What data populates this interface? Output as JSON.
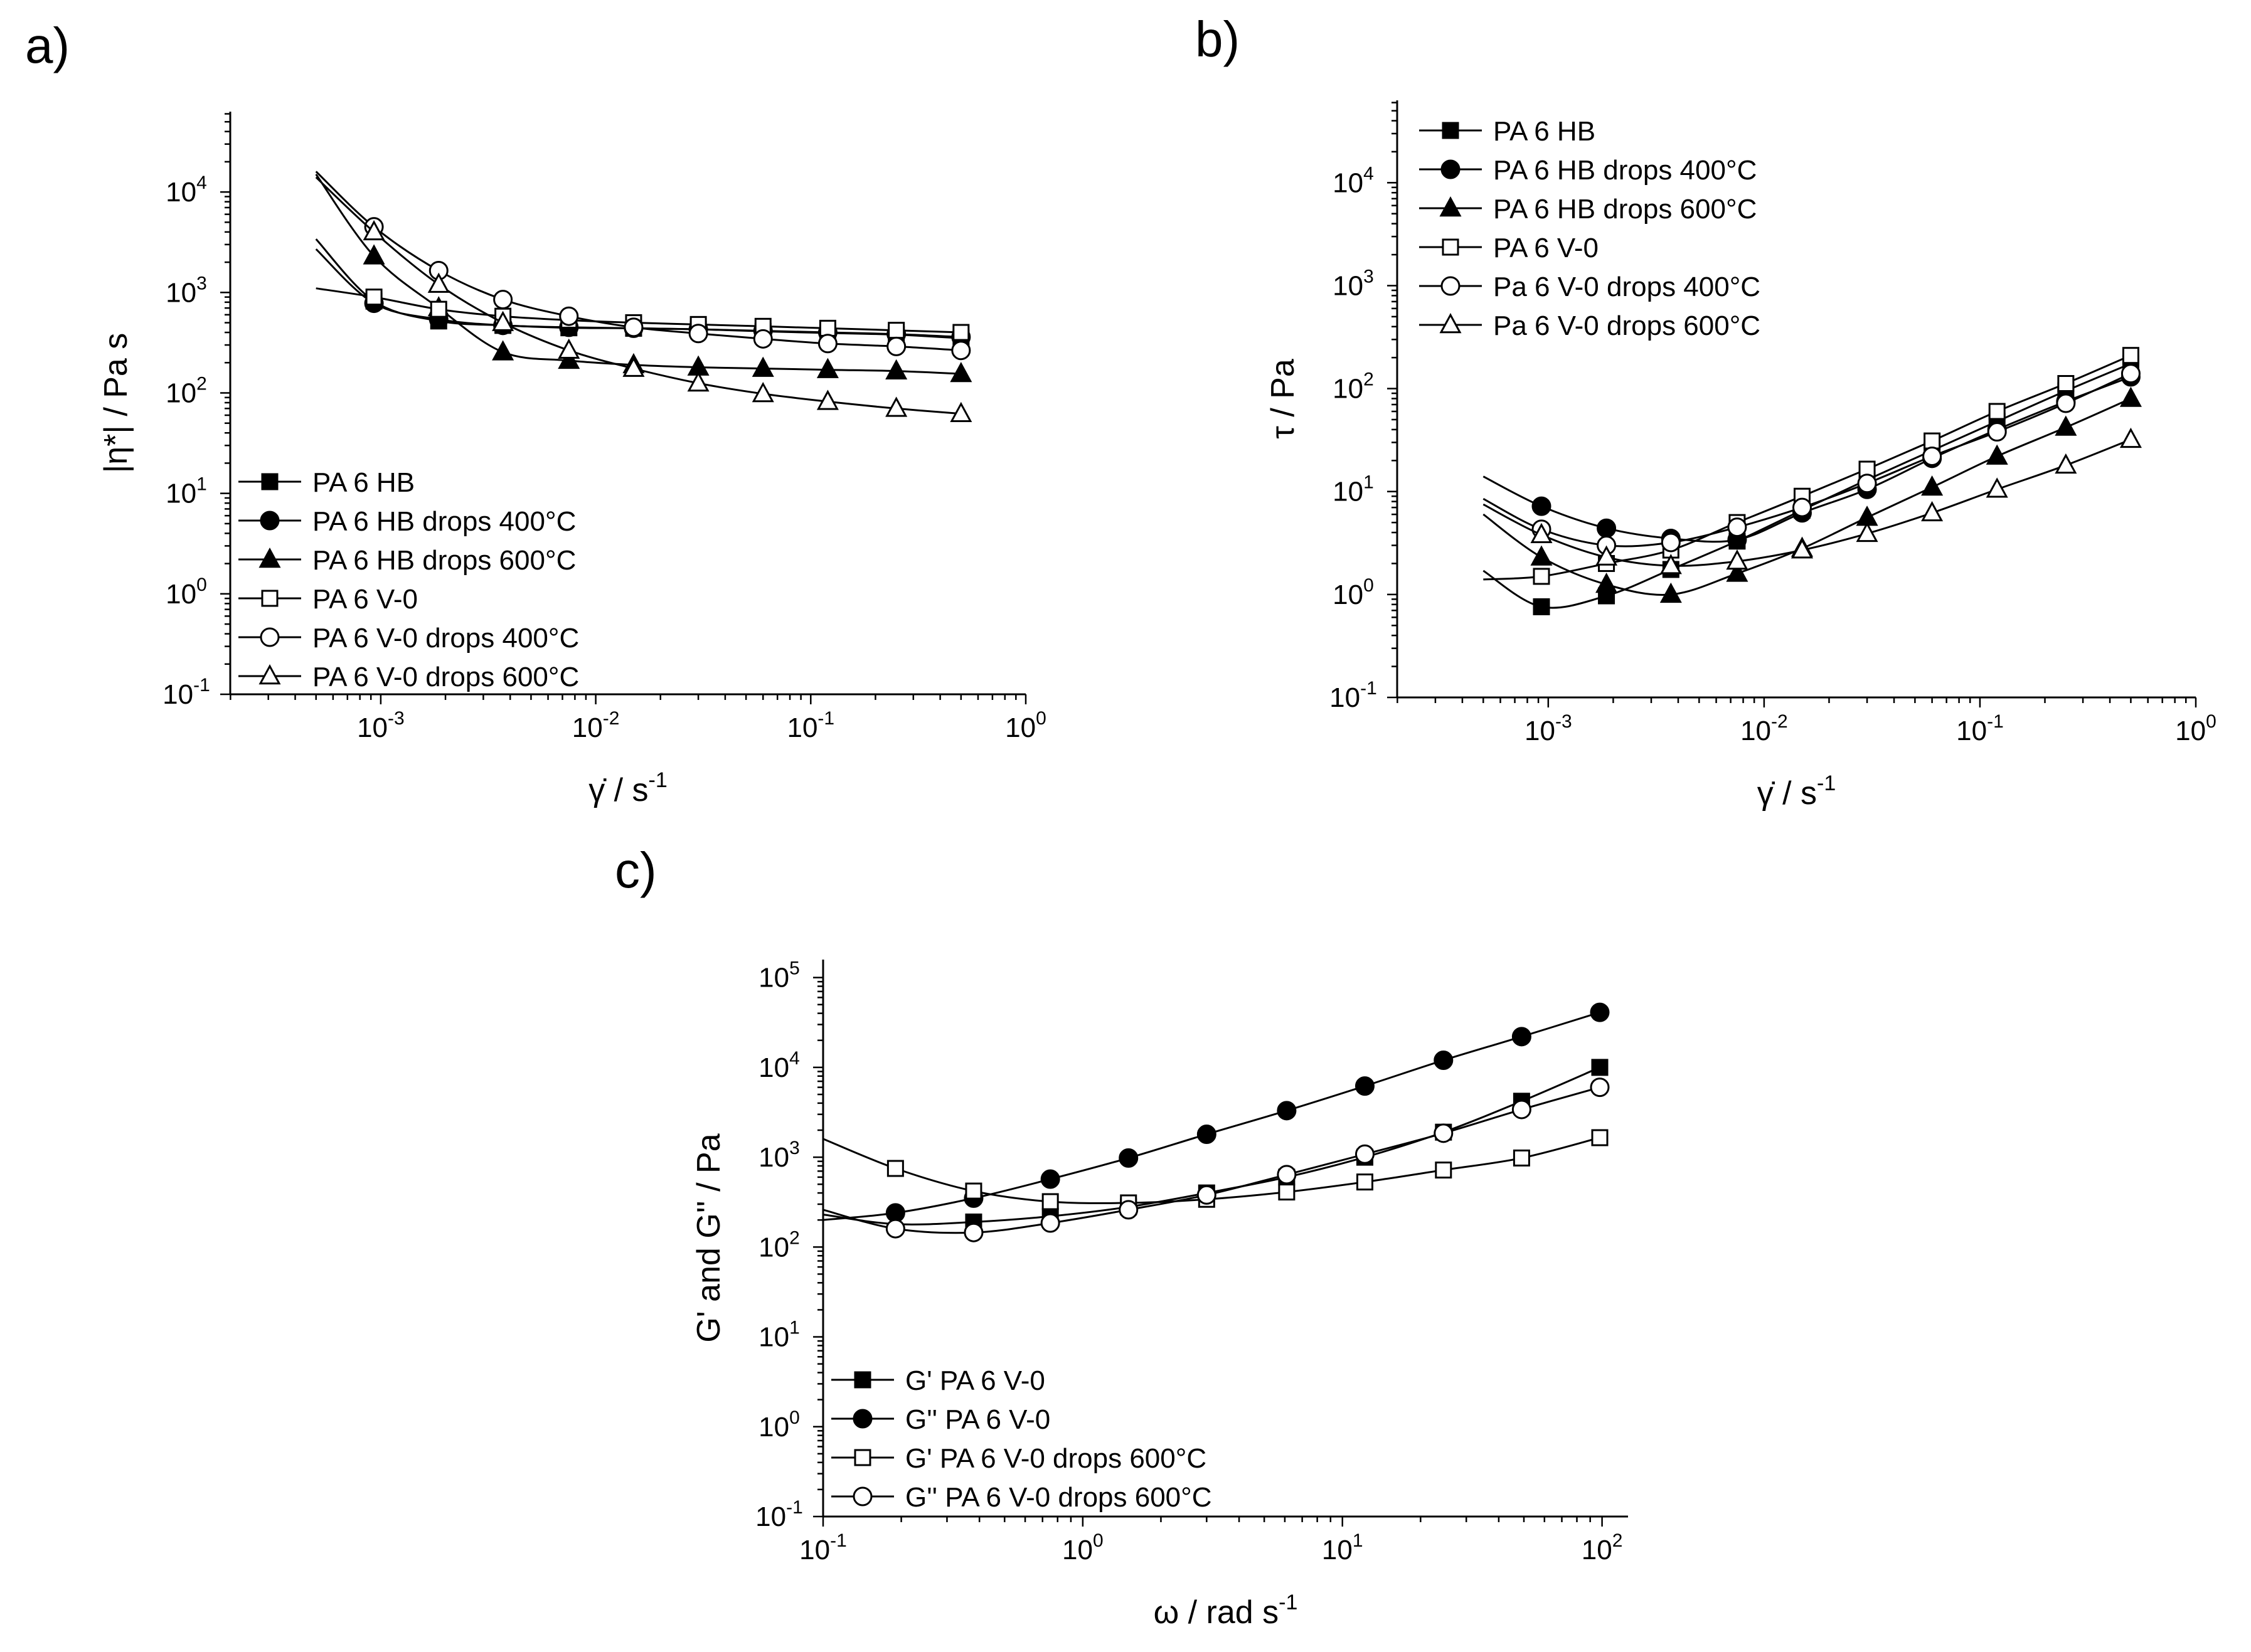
{
  "chart_data": [
    {
      "panel": "a)",
      "type": "line",
      "xscale": "log",
      "yscale": "log",
      "xlim_exp": [
        -3.7,
        0
      ],
      "ylim_exp": [
        -1,
        4.8
      ],
      "xticks": [
        "10",
        "10",
        "10",
        "10"
      ],
      "xtick_exp": [
        "-3",
        "-2",
        "-1",
        "0"
      ],
      "xtick_vals": [
        -3,
        -2,
        -1,
        0
      ],
      "yticks": [
        "10",
        "10",
        "10",
        "10",
        "10",
        "10"
      ],
      "ytick_exp": [
        "-1",
        "0",
        "1",
        "2",
        "3",
        "4"
      ],
      "ytick_vals": [
        -1,
        0,
        1,
        2,
        3,
        4
      ],
      "xlabel": "γ̇ / s",
      "xlabel_sup": "-1",
      "ylabel": "|η*|  / Pa s",
      "legend": "bottom-left",
      "series": [
        {
          "name": "PA 6 HB",
          "marker": "square",
          "filled": true,
          "curve_x": [
            0.0005,
            0.00093,
            0.00186,
            0.0037,
            0.0075,
            0.015,
            0.03,
            0.06,
            0.12,
            0.25,
            0.5
          ],
          "curve_y": [
            3400,
            820,
            520,
            470,
            445,
            440,
            430,
            410,
            395,
            380,
            350
          ],
          "x": [
            0.00093,
            0.00186,
            0.0037,
            0.0075,
            0.015,
            0.03,
            0.06,
            0.12,
            0.25,
            0.5
          ],
          "y": [
            820,
            520,
            470,
            445,
            440,
            430,
            410,
            395,
            380,
            350
          ]
        },
        {
          "name": "PA 6 HB drops 400°C",
          "marker": "circle",
          "filled": true,
          "curve_x": [
            0.0005,
            0.00093,
            0.00186,
            0.0037,
            0.0075,
            0.015,
            0.03,
            0.06,
            0.12,
            0.25,
            0.5
          ],
          "curve_y": [
            2700,
            780,
            540,
            470,
            450,
            440,
            430,
            415,
            400,
            385,
            360
          ],
          "x": [
            0.00093,
            0.00186,
            0.0037,
            0.0075,
            0.015,
            0.03,
            0.06,
            0.12,
            0.25,
            0.5
          ],
          "y": [
            780,
            540,
            470,
            450,
            440,
            430,
            415,
            400,
            385,
            360
          ]
        },
        {
          "name": "PA 6 HB drops 600°C",
          "marker": "triangle",
          "filled": true,
          "curve_x": [
            0.0005,
            0.00093,
            0.00186,
            0.0037,
            0.0075,
            0.015,
            0.03,
            0.06,
            0.12,
            0.25,
            0.5
          ],
          "curve_y": [
            15000,
            2300,
            700,
            255,
            210,
            190,
            180,
            175,
            170,
            165,
            155
          ],
          "x": [
            0.00093,
            0.00186,
            0.0037,
            0.0075,
            0.015,
            0.03,
            0.06,
            0.12,
            0.25,
            0.5
          ],
          "y": [
            2300,
            700,
            255,
            210,
            190,
            180,
            175,
            170,
            165,
            155
          ]
        },
        {
          "name": "PA 6 V-0",
          "marker": "square",
          "filled": false,
          "curve_x": [
            0.0005,
            0.00093,
            0.00186,
            0.0037,
            0.0075,
            0.015,
            0.03,
            0.06,
            0.12,
            0.25,
            0.5
          ],
          "curve_y": [
            1100,
            900,
            680,
            580,
            530,
            500,
            480,
            460,
            440,
            420,
            400
          ],
          "x": [
            0.00093,
            0.00186,
            0.0037,
            0.0075,
            0.015,
            0.03,
            0.06,
            0.12,
            0.25,
            0.5
          ],
          "y": [
            900,
            680,
            580,
            530,
            500,
            480,
            460,
            440,
            420,
            400
          ]
        },
        {
          "name": "PA 6 V-0 drops 400°C",
          "marker": "circle",
          "filled": false,
          "curve_x": [
            0.0005,
            0.00093,
            0.00186,
            0.0037,
            0.0075,
            0.015,
            0.03,
            0.06,
            0.12,
            0.25,
            0.5
          ],
          "curve_y": [
            16000,
            4500,
            1650,
            850,
            580,
            450,
            390,
            345,
            310,
            290,
            265
          ],
          "x": [
            0.00093,
            0.00186,
            0.0037,
            0.0075,
            0.015,
            0.03,
            0.06,
            0.12,
            0.25,
            0.5
          ],
          "y": [
            4500,
            1650,
            850,
            580,
            450,
            390,
            345,
            310,
            290,
            265
          ]
        },
        {
          "name": "PA 6 V-0 drops 600°C",
          "marker": "triangle",
          "filled": false,
          "curve_x": [
            0.0005,
            0.00093,
            0.00186,
            0.0037,
            0.0075,
            0.015,
            0.03,
            0.06,
            0.12,
            0.25,
            0.5
          ],
          "curve_y": [
            14000,
            4000,
            1200,
            500,
            265,
            175,
            125,
            98,
            82,
            70,
            62
          ],
          "x": [
            0.00093,
            0.00186,
            0.0037,
            0.0075,
            0.015,
            0.03,
            0.06,
            0.12,
            0.25,
            0.5
          ],
          "y": [
            4000,
            1200,
            500,
            265,
            175,
            125,
            98,
            82,
            70,
            62
          ]
        }
      ]
    },
    {
      "panel": "b)",
      "type": "line",
      "xscale": "log",
      "yscale": "log",
      "xlim_exp": [
        -3.7,
        0
      ],
      "ylim_exp": [
        -1,
        4.8
      ],
      "xticks": [
        "10",
        "10",
        "10",
        "10"
      ],
      "xtick_exp": [
        "-3",
        "-2",
        "-1",
        "0"
      ],
      "xtick_vals": [
        -3,
        -2,
        -1,
        0
      ],
      "yticks": [
        "10",
        "10",
        "10",
        "10",
        "10",
        "10"
      ],
      "ytick_exp": [
        "-1",
        "0",
        "1",
        "2",
        "3",
        "4"
      ],
      "ytick_vals": [
        -1,
        0,
        1,
        2,
        3,
        4
      ],
      "xlabel": "γ̇  / s",
      "xlabel_sup": "-1",
      "ylabel": "τ  / Pa",
      "legend": "top-left",
      "series": [
        {
          "name": "PA 6 HB",
          "marker": "square",
          "filled": true,
          "curve_x": [
            0.0005,
            0.00093,
            0.00186,
            0.0037,
            0.0075,
            0.015,
            0.03,
            0.06,
            0.12,
            0.25,
            0.5
          ],
          "curve_y": [
            1.7,
            0.76,
            0.97,
            1.75,
            3.3,
            6.6,
            13,
            25,
            48,
            95,
            175
          ],
          "x": [
            0.00093,
            0.00186,
            0.0037,
            0.0075,
            0.015,
            0.03,
            0.06,
            0.12,
            0.25,
            0.5
          ],
          "y": [
            0.76,
            0.97,
            1.75,
            3.3,
            6.6,
            13,
            25,
            48,
            95,
            175
          ]
        },
        {
          "name": "PA 6 HB drops 400°C",
          "marker": "circle",
          "filled": true,
          "curve_x": [
            0.0005,
            0.00093,
            0.00186,
            0.0037,
            0.0075,
            0.015,
            0.03,
            0.06,
            0.12,
            0.25,
            0.5
          ],
          "curve_y": [
            14,
            7.2,
            4.4,
            3.5,
            3.4,
            6.2,
            10.5,
            21,
            40,
            75,
            130
          ],
          "x": [
            0.00093,
            0.00186,
            0.0037,
            0.0075,
            0.015,
            0.03,
            0.06,
            0.12,
            0.25,
            0.5
          ],
          "y": [
            7.2,
            4.4,
            3.5,
            3.4,
            6.2,
            10.5,
            21,
            40,
            75,
            130
          ]
        },
        {
          "name": "PA 6 HB drops 600°C",
          "marker": "triangle",
          "filled": true,
          "curve_x": [
            0.0005,
            0.00093,
            0.00186,
            0.0037,
            0.0075,
            0.015,
            0.03,
            0.06,
            0.12,
            0.25,
            0.5
          ],
          "curve_y": [
            6,
            2.3,
            1.25,
            1.0,
            1.6,
            2.8,
            5.6,
            11,
            22,
            42,
            80
          ],
          "x": [
            0.00093,
            0.00186,
            0.0037,
            0.0075,
            0.015,
            0.03,
            0.06,
            0.12,
            0.25,
            0.5
          ],
          "y": [
            2.3,
            1.25,
            1.0,
            1.6,
            2.8,
            5.6,
            11,
            22,
            42,
            80
          ]
        },
        {
          "name": "PA 6 V-0",
          "marker": "square",
          "filled": false,
          "curve_x": [
            0.0005,
            0.00093,
            0.00186,
            0.0037,
            0.0075,
            0.015,
            0.03,
            0.06,
            0.12,
            0.25,
            0.5
          ],
          "curve_y": [
            1.4,
            1.5,
            2.0,
            2.7,
            5.0,
            9.0,
            16.5,
            31,
            60,
            112,
            210
          ],
          "x": [
            0.00093,
            0.00186,
            0.0037,
            0.0075,
            0.015,
            0.03,
            0.06,
            0.12,
            0.25,
            0.5
          ],
          "y": [
            1.5,
            2.0,
            2.7,
            5.0,
            9.0,
            16.5,
            31,
            60,
            112,
            210
          ]
        },
        {
          "name": "Pa 6 V-0 drops 400°C",
          "marker": "circle",
          "filled": false,
          "curve_x": [
            0.0005,
            0.00093,
            0.00186,
            0.0037,
            0.0075,
            0.015,
            0.03,
            0.06,
            0.12,
            0.25,
            0.5
          ],
          "curve_y": [
            8.5,
            4.3,
            3.0,
            3.2,
            4.5,
            7.0,
            12,
            22,
            38,
            72,
            140
          ],
          "x": [
            0.00093,
            0.00186,
            0.0037,
            0.0075,
            0.015,
            0.03,
            0.06,
            0.12,
            0.25,
            0.5
          ],
          "y": [
            4.3,
            3.0,
            3.2,
            4.5,
            7.0,
            12,
            22,
            38,
            72,
            140
          ]
        },
        {
          "name": "Pa 6 V-0 drops 600°C",
          "marker": "triangle",
          "filled": false,
          "curve_x": [
            0.0005,
            0.00093,
            0.00186,
            0.0037,
            0.0075,
            0.015,
            0.03,
            0.06,
            0.12,
            0.25,
            0.5
          ],
          "curve_y": [
            7.5,
            3.8,
            2.3,
            1.9,
            2.1,
            2.7,
            3.9,
            6.2,
            10.5,
            18,
            32
          ],
          "x": [
            0.00093,
            0.00186,
            0.0037,
            0.0075,
            0.015,
            0.03,
            0.06,
            0.12,
            0.25,
            0.5
          ],
          "y": [
            3.8,
            2.3,
            1.9,
            2.1,
            2.7,
            3.9,
            6.2,
            10.5,
            18,
            32
          ]
        }
      ]
    },
    {
      "panel": "c)",
      "type": "line",
      "xscale": "log",
      "yscale": "log",
      "xlim_exp": [
        -1,
        2.1
      ],
      "ylim_exp": [
        -1,
        5.2
      ],
      "xticks": [
        "10",
        "10",
        "10",
        "10"
      ],
      "xtick_exp": [
        "-1",
        "0",
        "1",
        "2"
      ],
      "xtick_vals": [
        -1,
        0,
        1,
        2
      ],
      "yticks": [
        "10",
        "10",
        "10",
        "10",
        "10",
        "10",
        "10"
      ],
      "ytick_exp": [
        "-1",
        "0",
        "1",
        "2",
        "3",
        "4",
        "5"
      ],
      "ytick_vals": [
        -1,
        0,
        1,
        2,
        3,
        4,
        5
      ],
      "xlabel": "ω  / rad s",
      "xlabel_sup": "-1",
      "ylabel": "G' and G''  / Pa",
      "legend": "bottom-left",
      "series": [
        {
          "name": "G'  PA 6 V-0",
          "marker": "square",
          "filled": true,
          "curve_x": [
            0.1,
            0.19,
            0.38,
            0.75,
            1.5,
            3.0,
            6.1,
            12.2,
            24.5,
            49,
            98
          ],
          "curve_y": [
            230,
            180,
            190,
            220,
            280,
            400,
            600,
            1000,
            1900,
            4200,
            10000
          ],
          "x": [
            0.38,
            0.75,
            1.5,
            3.0,
            6.1,
            12.2,
            24.5,
            49,
            98
          ],
          "y": [
            190,
            220,
            280,
            400,
            600,
            1000,
            1900,
            4200,
            10000
          ]
        },
        {
          "name": "G'' PA 6 V-0",
          "marker": "circle",
          "filled": true,
          "curve_x": [
            0.1,
            0.19,
            0.38,
            0.75,
            1.5,
            3.0,
            6.1,
            12.2,
            24.5,
            49,
            98
          ],
          "curve_y": [
            200,
            240,
            350,
            570,
            980,
            1800,
            3300,
            6200,
            12000,
            22000,
            41000
          ],
          "x": [
            0.19,
            0.38,
            0.75,
            1.5,
            3.0,
            6.1,
            12.2,
            24.5,
            49,
            98
          ],
          "y": [
            240,
            350,
            570,
            980,
            1800,
            3300,
            6200,
            12000,
            22000,
            41000
          ]
        },
        {
          "name": "G'  PA 6 V-0 drops 600°C",
          "marker": "square",
          "filled": false,
          "curve_x": [
            0.1,
            0.19,
            0.38,
            0.75,
            1.5,
            3.0,
            6.1,
            12.2,
            24.5,
            49,
            98
          ],
          "curve_y": [
            1600,
            750,
            420,
            320,
            310,
            340,
            410,
            530,
            720,
            980,
            1650
          ],
          "x": [
            0.19,
            0.38,
            0.75,
            1.5,
            3.0,
            6.1,
            12.2,
            24.5,
            49,
            98
          ],
          "y": [
            750,
            420,
            320,
            310,
            340,
            410,
            530,
            720,
            980,
            1650
          ]
        },
        {
          "name": "G'' PA 6 V-0 drops 600°C",
          "marker": "circle",
          "filled": false,
          "curve_x": [
            0.1,
            0.19,
            0.38,
            0.75,
            1.5,
            3.0,
            6.1,
            12.2,
            24.5,
            49,
            98
          ],
          "curve_y": [
            260,
            160,
            145,
            185,
            260,
            380,
            640,
            1080,
            1850,
            3400,
            6000
          ],
          "x": [
            0.19,
            0.38,
            0.75,
            1.5,
            3.0,
            6.1,
            12.2,
            24.5,
            49,
            98
          ],
          "y": [
            160,
            145,
            185,
            260,
            380,
            640,
            1080,
            1850,
            3400,
            6000
          ]
        }
      ]
    }
  ]
}
